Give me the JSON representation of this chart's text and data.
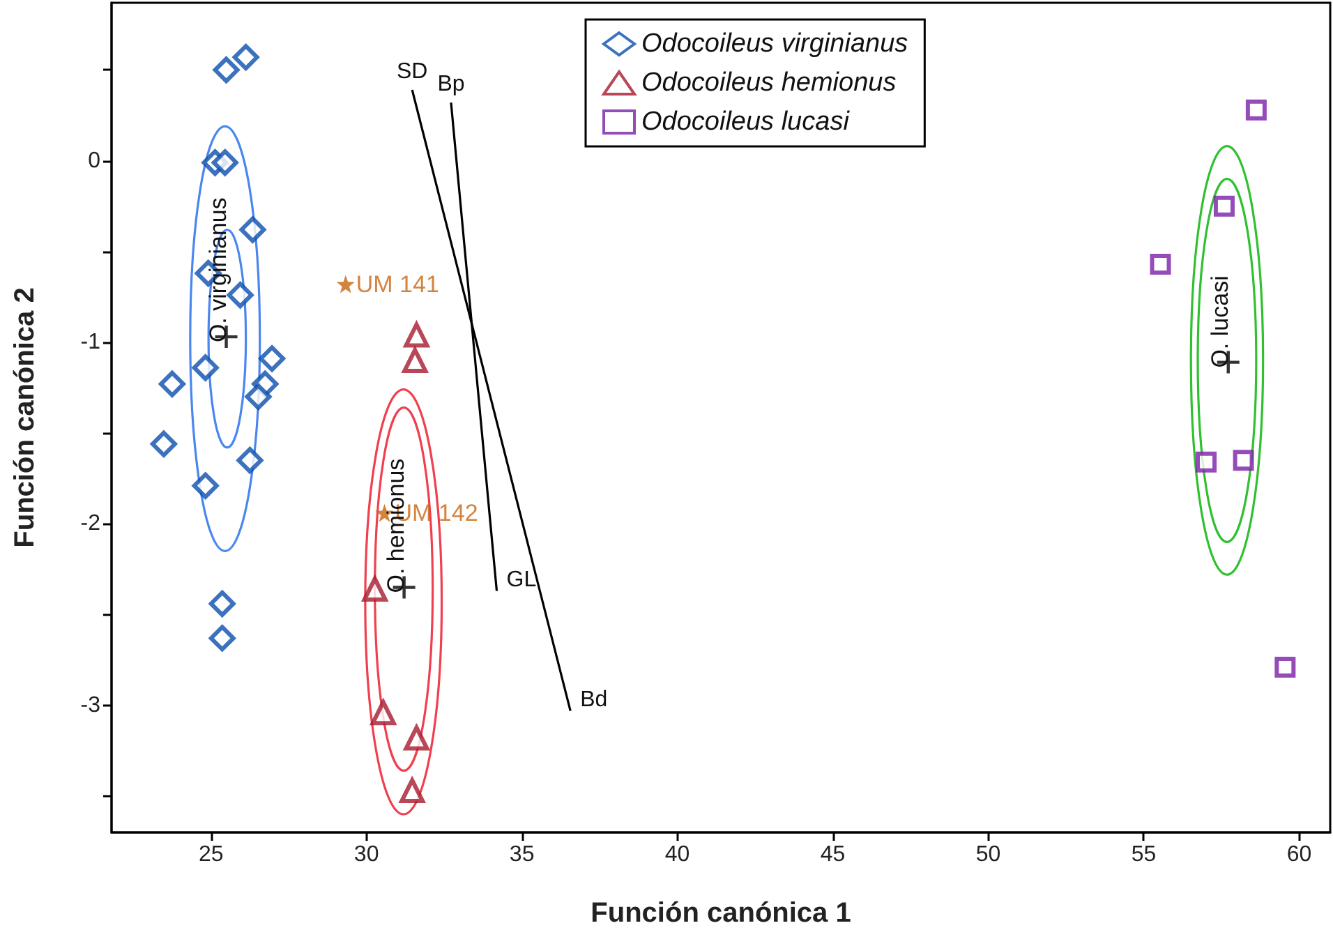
{
  "chart_data": {
    "type": "scatter",
    "xlabel": "Función canónica 1",
    "ylabel": "Función canónica 2",
    "xlim": [
      21.8,
      61
    ],
    "xticks": [
      25,
      30,
      35,
      40,
      45,
      50,
      55,
      60
    ],
    "ylim": [
      -3.7,
      0.87
    ],
    "yticks": [
      {
        "value": -3.5,
        "label": null
      },
      -3,
      {
        "value": -2.5,
        "label": null
      },
      -2,
      {
        "value": -1.5,
        "label": null
      },
      -1,
      {
        "value": -0.5,
        "label": null
      },
      0,
      {
        "value": 0.5,
        "label": null
      }
    ],
    "legend": "top",
    "annotations": [
      {
        "text": "O. virginianus",
        "x": 25.49,
        "y": -0.97
      },
      {
        "text": "O. hemionus",
        "x": 31.21,
        "y": -2.35
      },
      {
        "text": "O. lucasi",
        "x": 57.72,
        "y": -1.11
      }
    ],
    "series": [
      {
        "type": "line",
        "color": "#000000",
        "x": [
          31.47,
          36.56
        ],
        "values": [
          0.39,
          -3.03
        ],
        "value_labels": [
          "SD",
          "Bd"
        ]
      },
      {
        "type": "line",
        "color": "#000000",
        "x": [
          32.72,
          34.19
        ],
        "values": [
          0.32,
          -2.37
        ],
        "value_labels": [
          "Bp",
          "GL"
        ]
      },
      {
        "name": "Odocoileus virginianus",
        "color": "#0b4fad",
        "marker": "diamond",
        "x": [
          25.49,
          26.12,
          25.13,
          25.45,
          26.34,
          24.91,
          25.94,
          26.96,
          23.75,
          26.74,
          26.52,
          24.82,
          23.48,
          26.25,
          24.82,
          25.36,
          25.36
        ],
        "values": [
          0.5,
          0.57,
          -0.01,
          -0.01,
          -0.38,
          -0.62,
          -0.74,
          -1.09,
          -1.23,
          -1.23,
          -1.3,
          -1.14,
          -1.56,
          -1.65,
          -1.79,
          -2.44,
          -2.63
        ]
      },
      {
        "name": "Odocoileus hemionus",
        "color": "#a6192e",
        "marker": "triangle",
        "x": [
          31.61,
          31.56,
          30.27,
          30.54,
          31.61,
          31.47
        ],
        "values": [
          -0.96,
          -1.1,
          -2.36,
          -3.04,
          -3.18,
          -3.47
        ]
      },
      {
        "name": "Odocoileus lucasi",
        "color": "#7a1fa8",
        "marker": "square",
        "x": [
          58.62,
          57.59,
          55.54,
          57.01,
          58.21,
          59.55
        ],
        "values": [
          0.28,
          -0.25,
          -0.57,
          -1.66,
          -1.65,
          -2.79
        ]
      },
      {
        "color": "#c8650f",
        "marker": "star",
        "x": [
          29.33,
          30.58
        ],
        "values": [
          -0.68,
          -1.94
        ],
        "value_labels": [
          "UM 141",
          "UM 142"
        ]
      },
      {
        "color": "#000000",
        "marker": "cross",
        "x": [
          25.49,
          31.21,
          57.72
        ],
        "values": [
          -0.97,
          -2.35,
          -1.11
        ]
      }
    ]
  }
}
